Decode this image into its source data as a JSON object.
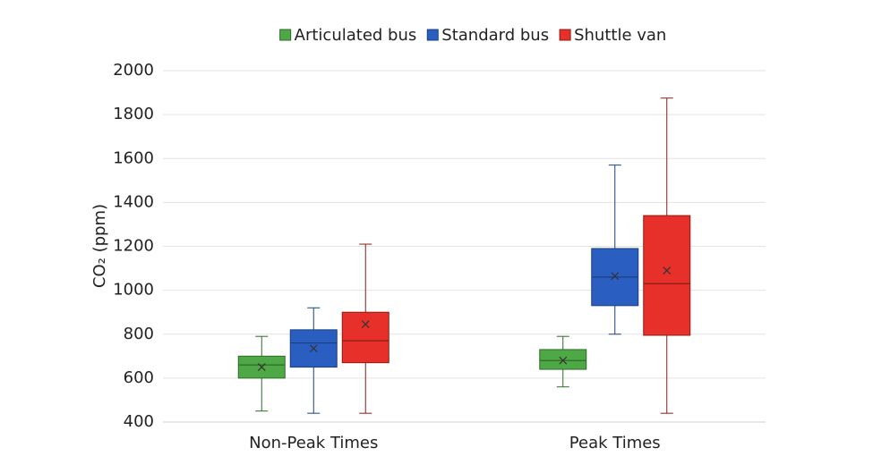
{
  "chart_data": {
    "type": "box",
    "ylabel": "CO₂ (ppm)",
    "categories": [
      "Non-Peak Times",
      "Peak Times"
    ],
    "series": [
      {
        "name": "Articulated bus",
        "color": "#4ea846",
        "edge": "#2e6b2a",
        "min": [
          450,
          560
        ],
        "q1": [
          600,
          640
        ],
        "median": [
          660,
          680
        ],
        "q3": [
          700,
          730
        ],
        "max": [
          790,
          790
        ],
        "mean": [
          650,
          680
        ]
      },
      {
        "name": "Standard bus",
        "color": "#2a5fc1",
        "edge": "#1d3f80",
        "min": [
          440,
          800
        ],
        "q1": [
          650,
          930
        ],
        "median": [
          760,
          1060
        ],
        "q3": [
          820,
          1190
        ],
        "max": [
          920,
          1570
        ],
        "mean": [
          735,
          1065
        ]
      },
      {
        "name": "Shuttle van",
        "color": "#e8302a",
        "edge": "#8a1c17",
        "min": [
          440,
          440
        ],
        "q1": [
          670,
          795
        ],
        "median": [
          770,
          1030
        ],
        "q3": [
          900,
          1340
        ],
        "max": [
          1210,
          1875
        ],
        "mean": [
          845,
          1090
        ]
      }
    ],
    "ylim": [
      400,
      2000
    ],
    "yticks": [
      400,
      600,
      800,
      1000,
      1200,
      1400,
      1600,
      1800,
      2000
    ],
    "grid": true,
    "legend": "top"
  }
}
